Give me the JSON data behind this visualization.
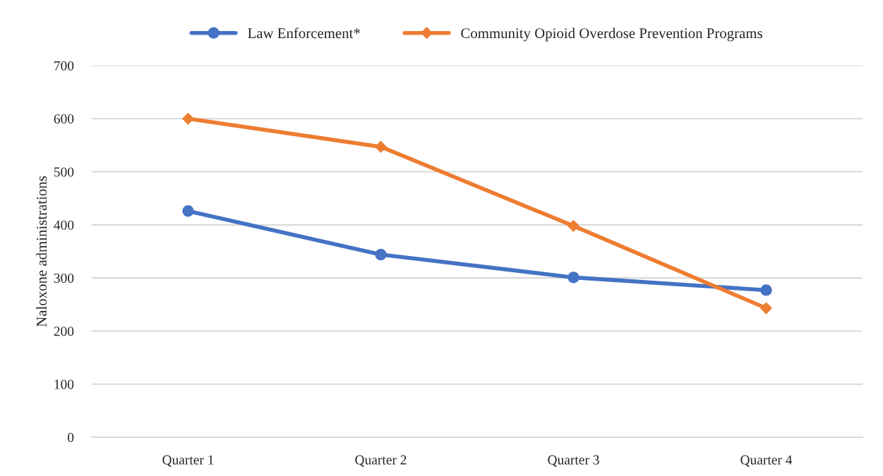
{
  "chart_data": {
    "type": "line",
    "ylabel": "Naloxone administrations",
    "categories": [
      "Quarter 1",
      "Quarter 2",
      "Quarter 3",
      "Quarter 4"
    ],
    "series": [
      {
        "name": "Law Enforcement*",
        "color": "#4472c4",
        "values": [
          426,
          344,
          301,
          277
        ],
        "marker": "circle"
      },
      {
        "name": "Community Opioid Overdose Prevention Programs",
        "color": "#ed7d31",
        "values": [
          600,
          547,
          398,
          243
        ],
        "marker": "diamond"
      }
    ],
    "ylim": [
      0,
      700
    ],
    "yticks": [
      0,
      100,
      200,
      300,
      400,
      500,
      600,
      700
    ],
    "grid": "y",
    "legend": "top"
  }
}
